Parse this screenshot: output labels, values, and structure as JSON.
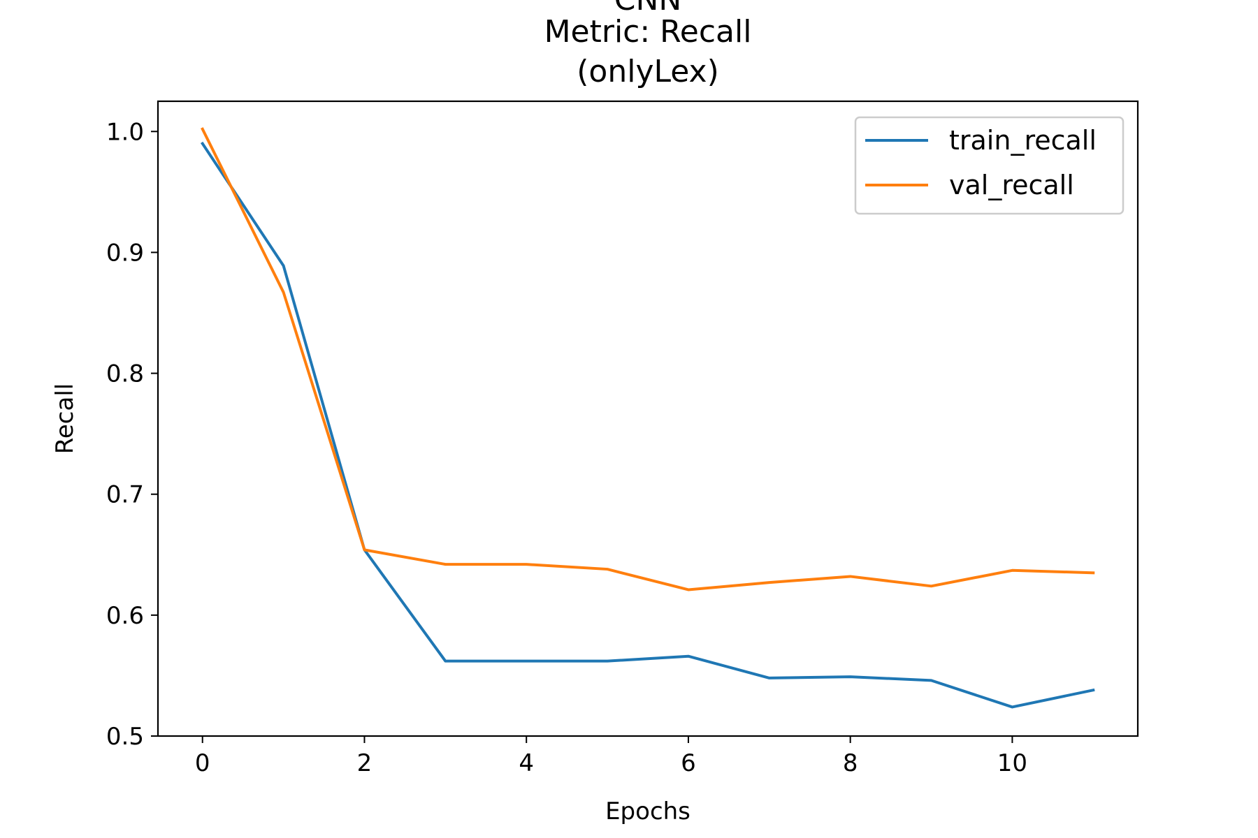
{
  "chart_data": {
    "type": "line",
    "title_lines": [
      "CNN",
      "Metric: Recall",
      "(onlyLex)"
    ],
    "xlabel": "Epochs",
    "ylabel": "Recall",
    "x": [
      0,
      1,
      2,
      3,
      4,
      5,
      6,
      7,
      8,
      9,
      10,
      11
    ],
    "xlim": [
      -0.55,
      11.55
    ],
    "ylim": [
      0.5,
      1.025
    ],
    "xticks": [
      0,
      2,
      4,
      6,
      8,
      10
    ],
    "xtick_labels": [
      "0",
      "2",
      "4",
      "6",
      "8",
      "10"
    ],
    "yticks": [
      0.5,
      0.6,
      0.7,
      0.8,
      0.9,
      1.0
    ],
    "ytick_labels": [
      "0.5",
      "0.6",
      "0.7",
      "0.8",
      "0.9",
      "1.0"
    ],
    "grid": false,
    "legend_position": "top-right",
    "series": [
      {
        "name": "train_recall",
        "color": "#1f77b4",
        "values": [
          0.99,
          0.889,
          0.654,
          0.562,
          0.562,
          0.562,
          0.566,
          0.548,
          0.549,
          0.546,
          0.524,
          0.538
        ]
      },
      {
        "name": "val_recall",
        "color": "#ff7f0e",
        "values": [
          1.002,
          0.867,
          0.654,
          0.642,
          0.642,
          0.638,
          0.621,
          0.627,
          0.632,
          0.624,
          0.637,
          0.635
        ]
      }
    ]
  }
}
